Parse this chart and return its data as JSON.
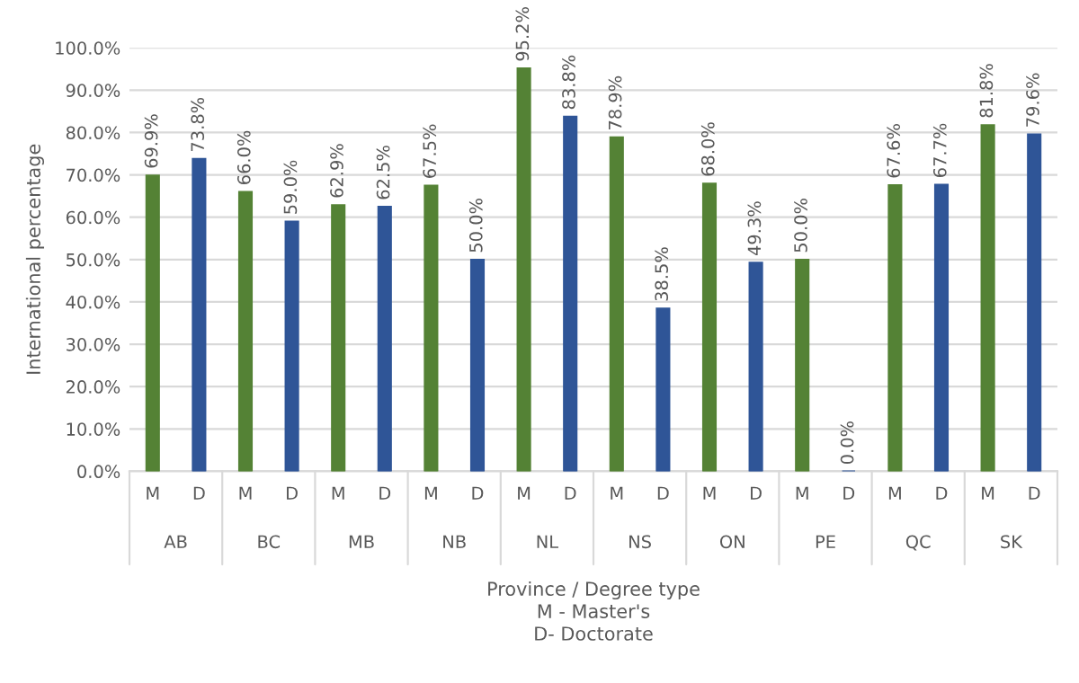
{
  "chart_data": {
    "type": "bar",
    "ylabel": "International percentage",
    "xlabel": "Province / Degree type\nM - Master's\nD- Doctorate",
    "categories": [
      "M",
      "D",
      "M",
      "D",
      "M",
      "D",
      "M",
      "D",
      "M",
      "D",
      "M",
      "D",
      "M",
      "D",
      "M",
      "D",
      "M",
      "D",
      "M",
      "D"
    ],
    "values": [
      69.9,
      73.8,
      66.0,
      59.0,
      62.9,
      62.5,
      67.5,
      50.0,
      95.2,
      83.8,
      78.9,
      38.5,
      68.0,
      49.3,
      50.0,
      0.0,
      67.6,
      67.7,
      81.8,
      79.6
    ],
    "value_labels": [
      "69.9%",
      "73.8%",
      "66.0%",
      "59.0%",
      "62.9%",
      "62.5%",
      "67.5%",
      "50.0%",
      "95.2%",
      "83.8%",
      "78.9%",
      "38.5%",
      "68.0%",
      "49.3%",
      "50.0%",
      "0.0%",
      "67.6%",
      "67.7%",
      "81.8%",
      "79.6%"
    ],
    "colors": [
      "#548235",
      "#2f5597",
      "#548235",
      "#2f5597",
      "#548235",
      "#2f5597",
      "#548235",
      "#2f5597",
      "#548235",
      "#2f5597",
      "#548235",
      "#2f5597",
      "#548235",
      "#2f5597",
      "#548235",
      "#2f5597",
      "#548235",
      "#2f5597",
      "#548235",
      "#2f5597"
    ],
    "annotations": [
      "AB",
      "BC",
      "MB",
      "NB",
      "NL",
      "NS",
      "ON",
      "PE",
      "QC",
      "SK"
    ],
    "ylim": [
      0,
      100
    ],
    "yticks": [
      {
        "value": 0,
        "label": "0.0%"
      },
      {
        "value": 10,
        "label": "10.0%"
      },
      {
        "value": 20,
        "label": "20.0%"
      },
      {
        "value": 30,
        "label": "30.0%"
      },
      {
        "value": 40,
        "label": "40.0%"
      },
      {
        "value": 50,
        "label": "50.0%"
      },
      {
        "value": 60,
        "label": "60.0%"
      },
      {
        "value": 70,
        "label": "70.0%"
      },
      {
        "value": 80,
        "label": "80.0%"
      },
      {
        "value": 90,
        "label": "90.0%"
      },
      {
        "value": 100,
        "label": "100.0%"
      }
    ],
    "grid": "y",
    "legend": false
  }
}
